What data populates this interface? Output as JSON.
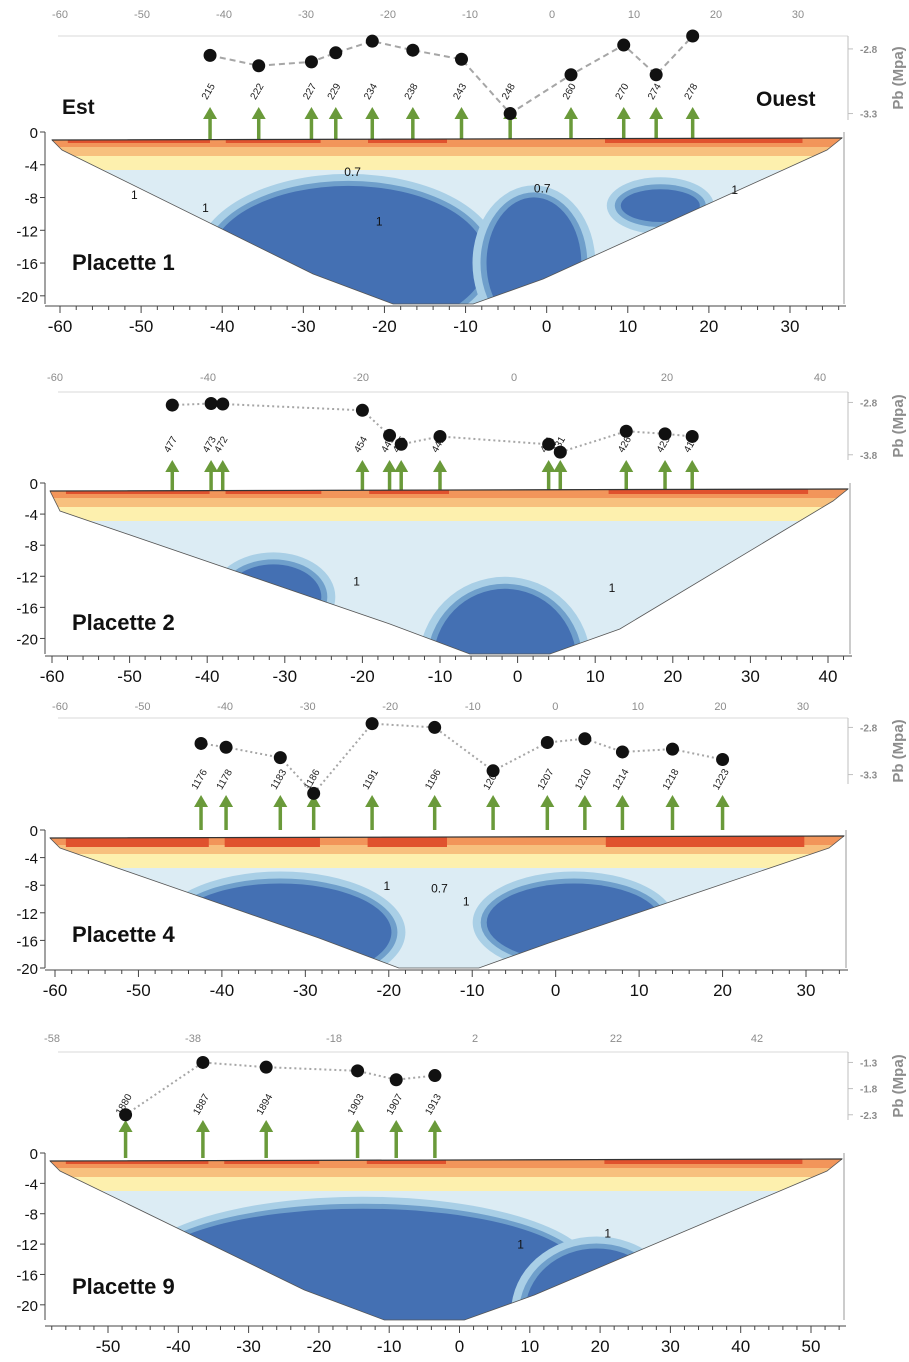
{
  "chart_data": [
    {
      "type": "line",
      "panel_label": "Placette 1",
      "west_label": "Est",
      "east_label": "Ouest",
      "pb_axis_label": "Pb (Mpa)",
      "pb_ticks": [
        -2.8,
        -3.3
      ],
      "pb_range": [
        -2.7,
        -3.35
      ],
      "top_ticks": [
        -60,
        -50,
        -40,
        -30,
        -20,
        -10,
        0,
        10,
        20,
        30
      ],
      "depth_ticks": [
        0,
        -4,
        -8,
        -12,
        -16,
        -20
      ],
      "bottom_ticks": [
        -60,
        -50,
        -40,
        -30,
        -20,
        -10,
        0,
        10,
        20,
        30
      ],
      "depth_range": [
        0,
        -21
      ],
      "x_range": [
        -61,
        36
      ],
      "contour_labels": [
        "0.7",
        "0.7",
        "1",
        "1",
        "1",
        "1"
      ],
      "points": [
        {
          "x": -41.5,
          "pb": -2.85,
          "label": "215"
        },
        {
          "x": -35.5,
          "pb": -2.93,
          "label": "222"
        },
        {
          "x": -29,
          "pb": -2.9,
          "label": "227"
        },
        {
          "x": -26,
          "pb": -2.83,
          "label": "229"
        },
        {
          "x": -21.5,
          "pb": -2.74,
          "label": "234"
        },
        {
          "x": -16.5,
          "pb": -2.81,
          "label": "238"
        },
        {
          "x": -10.5,
          "pb": -2.88,
          "label": "243"
        },
        {
          "x": -4.5,
          "pb": -3.3,
          "label": "248"
        },
        {
          "x": 3,
          "pb": -3.0,
          "label": "260"
        },
        {
          "x": 9.5,
          "pb": -2.77,
          "label": "270"
        },
        {
          "x": 13.5,
          "pb": -3.0,
          "label": "274"
        },
        {
          "x": 18,
          "pb": -2.7,
          "label": "278"
        }
      ]
    },
    {
      "type": "line",
      "panel_label": "Placette 2",
      "pb_axis_label": "Pb (Mpa)",
      "pb_ticks": [
        -2.8,
        -3.8
      ],
      "pb_range": [
        -2.6,
        -3.9
      ],
      "top_ticks": [
        -60,
        -40,
        -20,
        0,
        20,
        40
      ],
      "depth_ticks": [
        0,
        -4,
        -8,
        -12,
        -16,
        -20
      ],
      "bottom_ticks": [
        -60,
        -50,
        -40,
        -30,
        -20,
        -10,
        0,
        10,
        20,
        30,
        40
      ],
      "depth_range": [
        0,
        -22
      ],
      "x_range": [
        -61,
        43
      ],
      "contour_labels": [
        "1",
        "1"
      ],
      "points": [
        {
          "x": -44.5,
          "pb": -2.85,
          "label": "477"
        },
        {
          "x": -39.5,
          "pb": -2.82,
          "label": "473"
        },
        {
          "x": -38,
          "pb": -2.83,
          "label": "472"
        },
        {
          "x": -20,
          "pb": -2.95,
          "label": "454"
        },
        {
          "x": -16.5,
          "pb": -3.43,
          "label": "449"
        },
        {
          "x": -15,
          "pb": -3.6,
          "label": "445"
        },
        {
          "x": -10,
          "pb": -3.45,
          "label": "441"
        },
        {
          "x": 4,
          "pb": -3.6,
          "label": "431"
        },
        {
          "x": 5.5,
          "pb": -3.75,
          "label": "431"
        },
        {
          "x": 14,
          "pb": -3.35,
          "label": "426"
        },
        {
          "x": 19,
          "pb": -3.4,
          "label": "423"
        },
        {
          "x": 22.5,
          "pb": -3.45,
          "label": "419"
        }
      ]
    },
    {
      "type": "line",
      "panel_label": "Placette 4",
      "pb_axis_label": "Pb (Mpa)",
      "pb_ticks": [
        -2.8,
        -3.3
      ],
      "pb_range": [
        -2.7,
        -3.4
      ],
      "top_ticks": [
        -60,
        -50,
        -40,
        -30,
        -20,
        -10,
        0,
        10,
        20,
        30
      ],
      "depth_ticks": [
        0,
        -4,
        -8,
        -12,
        -16,
        -20
      ],
      "bottom_ticks": [
        -60,
        -50,
        -40,
        -30,
        -20,
        -10,
        0,
        10,
        20,
        30
      ],
      "depth_range": [
        0,
        -20
      ],
      "x_range": [
        -61,
        35
      ],
      "contour_labels": [
        "1",
        "0.7",
        "1"
      ],
      "points": [
        {
          "x": -42.5,
          "pb": -2.97,
          "label": "1176"
        },
        {
          "x": -39.5,
          "pb": -3.01,
          "label": "1178"
        },
        {
          "x": -33,
          "pb": -3.12,
          "label": "1183"
        },
        {
          "x": -29,
          "pb": -3.5,
          "label": "1186"
        },
        {
          "x": -22,
          "pb": -2.76,
          "label": "1191"
        },
        {
          "x": -14.5,
          "pb": -2.8,
          "label": "1196"
        },
        {
          "x": -7.5,
          "pb": -3.26,
          "label": "1201"
        },
        {
          "x": -1,
          "pb": -2.96,
          "label": "1207"
        },
        {
          "x": 3.5,
          "pb": -2.92,
          "label": "1210"
        },
        {
          "x": 8,
          "pb": -3.06,
          "label": "1214"
        },
        {
          "x": 14,
          "pb": -3.03,
          "label": "1218"
        },
        {
          "x": 20,
          "pb": -3.14,
          "label": "1223"
        }
      ]
    },
    {
      "type": "line",
      "panel_label": "Placette 9",
      "pb_axis_label": "Pb (Mpa)",
      "pb_ticks": [
        -1.3,
        -1.8,
        -2.3
      ],
      "pb_range": [
        -1.1,
        -2.4
      ],
      "top_ticks": [
        -58,
        -38,
        -18,
        2,
        22,
        42
      ],
      "depth_ticks": [
        0,
        -4,
        -8,
        -12,
        -16,
        -20
      ],
      "bottom_ticks": [
        -50,
        -40,
        -30,
        -20,
        -10,
        0,
        10,
        20,
        30,
        40,
        50
      ],
      "depth_range": [
        0,
        -22
      ],
      "x_range": [
        -58,
        54
      ],
      "contour_labels": [
        "1",
        "1"
      ],
      "points": [
        {
          "x": -47.5,
          "pb": -2.3,
          "label": "1880"
        },
        {
          "x": -36.5,
          "pb": -1.3,
          "label": "1887"
        },
        {
          "x": -27.5,
          "pb": -1.39,
          "label": "1894"
        },
        {
          "x": -14.5,
          "pb": -1.46,
          "label": "1903"
        },
        {
          "x": -9,
          "pb": -1.63,
          "label": "1907"
        },
        {
          "x": -3.5,
          "pb": -1.55,
          "label": "1913"
        }
      ]
    }
  ],
  "colors": {
    "red": "#e0522e",
    "orange": "#f2955a",
    "light_orange": "#f7c07e",
    "yellow": "#fdf0ae",
    "pale_blue": "#dcecf4",
    "light_blue": "#a9cfe6",
    "mid_blue": "#6f9fcb",
    "dark_blue": "#4470b3",
    "arrow": "#6a9a3a",
    "gray_text": "#8c8c8c"
  }
}
